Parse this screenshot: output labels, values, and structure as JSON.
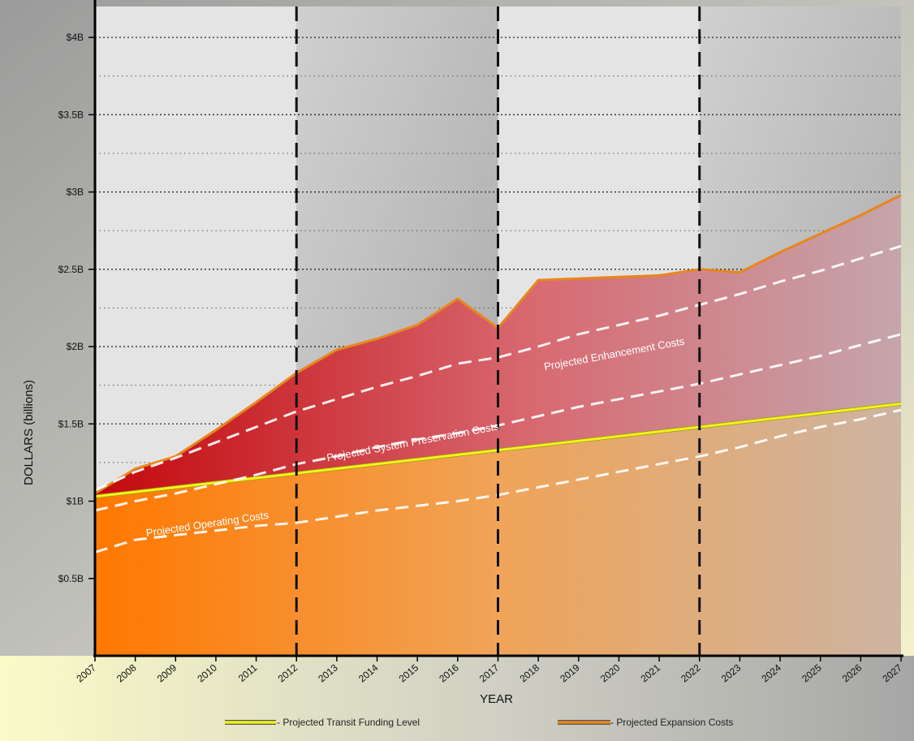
{
  "chart_data": {
    "type": "area",
    "xlabel": "YEAR",
    "ylabel": "DOLLARS (billions)",
    "ylim": [
      0,
      4.2
    ],
    "y_ticks": [
      {
        "value": 0.5,
        "label": "$0.5B"
      },
      {
        "value": 1.0,
        "label": "$1B"
      },
      {
        "value": 1.5,
        "label": "$1.5B"
      },
      {
        "value": 2.0,
        "label": "$2B"
      },
      {
        "value": 2.5,
        "label": "$2.5B"
      },
      {
        "value": 3.0,
        "label": "$3B"
      },
      {
        "value": 3.5,
        "label": "$3.5B"
      },
      {
        "value": 4.0,
        "label": "$4B"
      }
    ],
    "grid": true,
    "x": [
      2007,
      2008,
      2009,
      2010,
      2011,
      2012,
      2013,
      2014,
      2015,
      2016,
      2017,
      2018,
      2019,
      2020,
      2021,
      2022,
      2023,
      2024,
      2025,
      2026,
      2027
    ],
    "x_labels": [
      "2007",
      "2008",
      "2009",
      "2010",
      "2011",
      "2012",
      "2013",
      "2014",
      "2015",
      "2016",
      "2017",
      "2018",
      "2019",
      "2020",
      "2021",
      "2022",
      "2023",
      "2024",
      "2025",
      "2026",
      "2027"
    ],
    "period_boundaries": [
      2012,
      2017,
      2022
    ],
    "series": [
      {
        "name": "Projected Expansion Costs",
        "color": "#e8861c",
        "values": [
          1.05,
          1.21,
          1.29,
          1.46,
          1.64,
          1.83,
          1.98,
          2.05,
          2.14,
          2.31,
          2.12,
          2.43,
          2.44,
          2.45,
          2.46,
          2.5,
          2.48,
          2.61,
          2.73,
          2.85,
          2.98
        ]
      },
      {
        "name": "Projected Transit Funding Level",
        "color": "#f2f21e",
        "values": [
          1.03,
          1.06,
          1.09,
          1.12,
          1.15,
          1.18,
          1.21,
          1.24,
          1.27,
          1.3,
          1.33,
          1.36,
          1.39,
          1.42,
          1.45,
          1.48,
          1.51,
          1.54,
          1.57,
          1.6,
          1.63
        ]
      },
      {
        "name": "Projected Enhancement Costs",
        "color": "#ffffff",
        "values": [
          1.07,
          1.19,
          1.28,
          1.38,
          1.48,
          1.58,
          1.66,
          1.74,
          1.81,
          1.89,
          1.93,
          2.0,
          2.08,
          2.14,
          2.2,
          2.27,
          2.34,
          2.42,
          2.49,
          2.57,
          2.65
        ]
      },
      {
        "name": "Projected System Preservation Costs",
        "color": "#ffffff",
        "values": [
          0.94,
          1.0,
          1.05,
          1.11,
          1.17,
          1.24,
          1.29,
          1.35,
          1.4,
          1.44,
          1.49,
          1.55,
          1.61,
          1.66,
          1.71,
          1.76,
          1.82,
          1.88,
          1.94,
          2.01,
          2.08
        ]
      },
      {
        "name": "Projected Operating Costs",
        "color": "#ffffff",
        "values": [
          0.67,
          0.75,
          0.78,
          0.81,
          0.84,
          0.86,
          0.9,
          0.94,
          0.97,
          1.0,
          1.04,
          1.09,
          1.14,
          1.19,
          1.24,
          1.29,
          1.35,
          1.42,
          1.48,
          1.53,
          1.59
        ]
      }
    ],
    "annotations": [
      {
        "text": "Projected Enhancement Costs",
        "x": 2019.9,
        "y": 1.93,
        "angle": -10.5
      },
      {
        "text": "Projected System Preservation Costs",
        "x": 2014.9,
        "y": 1.36,
        "angle": -10.5
      },
      {
        "text": "Projected Operating Costs",
        "x": 2009.8,
        "y": 0.83,
        "angle": -8.5
      }
    ],
    "legend": {
      "placement": "bottom",
      "items": [
        {
          "label": "- Projected Transit Funding Level",
          "color": "#f2f21e"
        },
        {
          "label": "- Projected Expansion Costs",
          "color": "#e8861c"
        }
      ]
    }
  }
}
